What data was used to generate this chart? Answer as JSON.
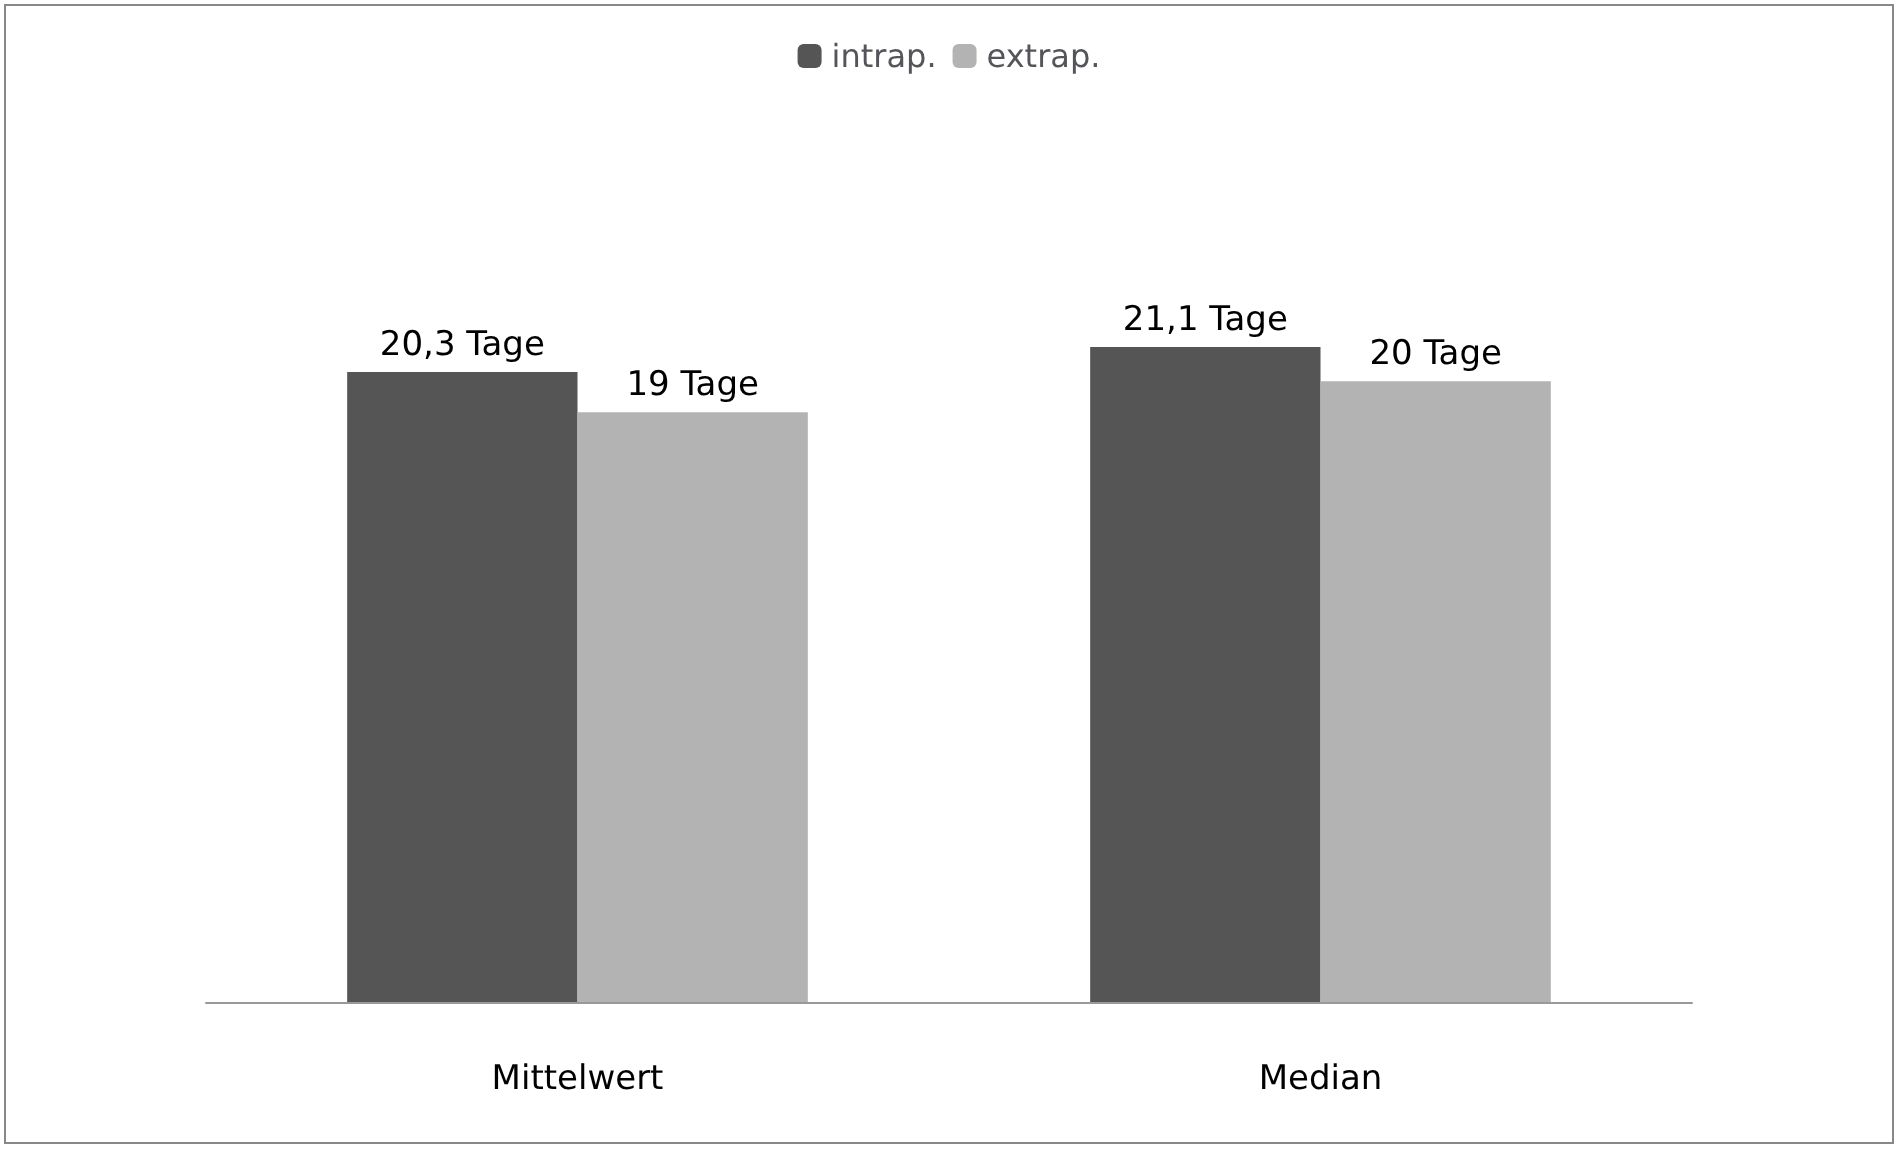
{
  "chart_data": {
    "type": "bar",
    "categories": [
      "Mittelwert",
      "Median"
    ],
    "series": [
      {
        "name": "intrap.",
        "color": "#555555",
        "values": [
          20.3,
          21.1
        ],
        "value_labels": [
          "20,3 Tage",
          "21,1 Tage"
        ]
      },
      {
        "name": "extrap.",
        "color": "#b3b3b3",
        "values": [
          19,
          20
        ],
        "value_labels": [
          "19 Tage",
          "20 Tage"
        ]
      }
    ],
    "legend": "top",
    "grid": false,
    "tick_labels": "x"
  }
}
